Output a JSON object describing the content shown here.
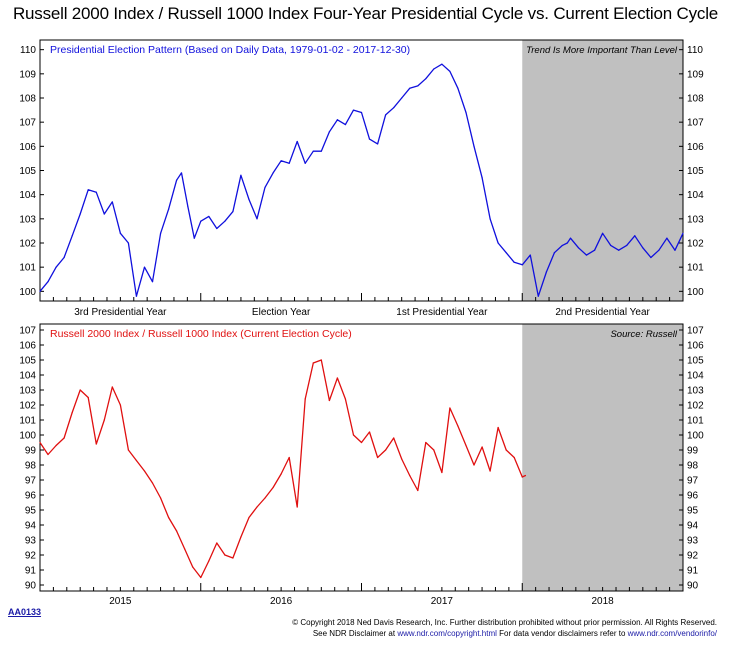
{
  "title": "Russell 2000 Index / Russell 1000 Index Four-Year Presidential Cycle vs. Current Election Cycle",
  "chart_data": [
    {
      "type": "line",
      "title": "",
      "legend": "Presidential Election Pattern (Based on Daily Data, 1979-01-02 - 2017-12-30)",
      "annotation": "Trend Is More Important Than Level",
      "ylim": [
        99.5,
        110.5
      ],
      "yticks": [
        100,
        101,
        102,
        103,
        104,
        105,
        106,
        107,
        108,
        109,
        110
      ],
      "xlim": [
        0,
        4
      ],
      "shaded_region": [
        3,
        4
      ],
      "phase_labels": [
        {
          "x": 0.5,
          "label": "3rd Presidential Year"
        },
        {
          "x": 1.5,
          "label": "Election Year"
        },
        {
          "x": 2.5,
          "label": "1st Presidential Year"
        },
        {
          "x": 3.5,
          "label": "2nd Presidential Year"
        }
      ],
      "series": [
        {
          "color": "#1010dd",
          "x": [
            0,
            0.05,
            0.1,
            0.15,
            0.2,
            0.25,
            0.3,
            0.35,
            0.4,
            0.45,
            0.5,
            0.55,
            0.6,
            0.65,
            0.7,
            0.75,
            0.8,
            0.85,
            0.88,
            0.92,
            0.96,
            1.0,
            1.05,
            1.1,
            1.15,
            1.2,
            1.25,
            1.3,
            1.35,
            1.4,
            1.45,
            1.5,
            1.55,
            1.6,
            1.65,
            1.7,
            1.75,
            1.8,
            1.85,
            1.9,
            1.95,
            2.0,
            2.05,
            2.1,
            2.15,
            2.2,
            2.25,
            2.3,
            2.35,
            2.4,
            2.45,
            2.5,
            2.55,
            2.6,
            2.65,
            2.7,
            2.75,
            2.8,
            2.85,
            2.9,
            2.95,
            3.0,
            3.05,
            3.1,
            3.15,
            3.2,
            3.25,
            3.28,
            3.3,
            3.35,
            3.4,
            3.45,
            3.5,
            3.55,
            3.6,
            3.65,
            3.7,
            3.75,
            3.8,
            3.85,
            3.9,
            3.95,
            4.0
          ],
          "y": [
            100.0,
            100.4,
            101.0,
            101.4,
            102.3,
            103.2,
            104.2,
            104.1,
            103.2,
            103.7,
            102.4,
            102.0,
            99.8,
            101.0,
            100.4,
            102.4,
            103.4,
            104.6,
            104.9,
            103.5,
            102.2,
            102.9,
            103.1,
            102.6,
            102.9,
            103.3,
            104.8,
            103.8,
            103.0,
            104.3,
            104.9,
            105.4,
            105.3,
            106.2,
            105.3,
            105.8,
            105.8,
            106.6,
            107.1,
            106.9,
            107.5,
            107.4,
            106.3,
            106.1,
            107.3,
            107.6,
            108.0,
            108.4,
            108.5,
            108.8,
            109.2,
            109.4,
            109.1,
            108.4,
            107.4,
            106.0,
            104.7,
            103.0,
            102.0,
            101.6,
            101.2,
            101.1,
            101.5,
            99.8,
            100.8,
            101.6,
            101.9,
            102.0,
            102.2,
            101.8,
            101.5,
            101.7,
            102.4,
            101.9,
            101.7,
            101.9,
            102.3,
            101.8,
            101.4,
            101.7,
            102.2,
            101.7,
            102.4
          ]
        }
      ]
    },
    {
      "type": "line",
      "title": "",
      "legend": "Russell 2000 Index / Russell 1000 Index (Current Election Cycle)",
      "annotation": "Source:  Russell",
      "ylim": [
        89.5,
        107.5
      ],
      "yticks": [
        90,
        91,
        92,
        93,
        94,
        95,
        96,
        97,
        98,
        99,
        100,
        101,
        102,
        103,
        104,
        105,
        106,
        107
      ],
      "xlim": [
        0,
        4
      ],
      "shaded_region": [
        3,
        4
      ],
      "year_labels": [
        {
          "x": 0.5,
          "label": "2015"
        },
        {
          "x": 1.5,
          "label": "2016"
        },
        {
          "x": 2.5,
          "label": "2017"
        },
        {
          "x": 3.5,
          "label": "2018"
        }
      ],
      "series": [
        {
          "color": "#e01010",
          "x": [
            0,
            0.05,
            0.1,
            0.15,
            0.2,
            0.25,
            0.3,
            0.35,
            0.4,
            0.45,
            0.5,
            0.55,
            0.6,
            0.65,
            0.7,
            0.75,
            0.8,
            0.85,
            0.9,
            0.95,
            1.0,
            1.05,
            1.1,
            1.15,
            1.2,
            1.25,
            1.3,
            1.35,
            1.4,
            1.45,
            1.5,
            1.55,
            1.6,
            1.65,
            1.7,
            1.75,
            1.8,
            1.85,
            1.9,
            1.95,
            2.0,
            2.05,
            2.1,
            2.15,
            2.2,
            2.25,
            2.3,
            2.35,
            2.4,
            2.45,
            2.5,
            2.55,
            2.6,
            2.65,
            2.7,
            2.75,
            2.8,
            2.85,
            2.9,
            2.95,
            3.0,
            3.02
          ],
          "y": [
            99.5,
            98.7,
            99.3,
            99.8,
            101.5,
            103.0,
            102.5,
            99.4,
            101.0,
            103.2,
            102.0,
            99.0,
            98.3,
            97.6,
            96.8,
            95.8,
            94.5,
            93.6,
            92.4,
            91.2,
            90.5,
            91.6,
            92.8,
            92.0,
            91.8,
            93.2,
            94.5,
            95.2,
            95.8,
            96.5,
            97.4,
            98.5,
            95.2,
            102.4,
            104.8,
            105.0,
            102.3,
            103.8,
            102.4,
            100.0,
            99.5,
            100.2,
            98.5,
            99.0,
            99.8,
            98.4,
            97.3,
            96.3,
            99.5,
            99.0,
            97.5,
            101.8,
            100.6,
            99.3,
            98.0,
            99.2,
            97.6,
            100.5,
            99.0,
            98.5,
            97.2,
            97.3
          ]
        }
      ]
    }
  ],
  "footer": {
    "code": "AA0133",
    "copyright_line1": "© Copyright 2018 Ned Davis Research, Inc. Further distribution prohibited without prior permission. All Rights Reserved.",
    "copyright_line2_a": "See NDR Disclaimer at ",
    "copyright_link1": "www.ndr.com/copyright.html",
    "copyright_line2_b": "  For data vendor disclaimers refer to ",
    "copyright_link2": "www.ndr.com/vendorinfo/"
  },
  "colors": {
    "shade": "#c0c0c0",
    "top_line": "#1010dd",
    "bottom_line": "#e01010"
  }
}
